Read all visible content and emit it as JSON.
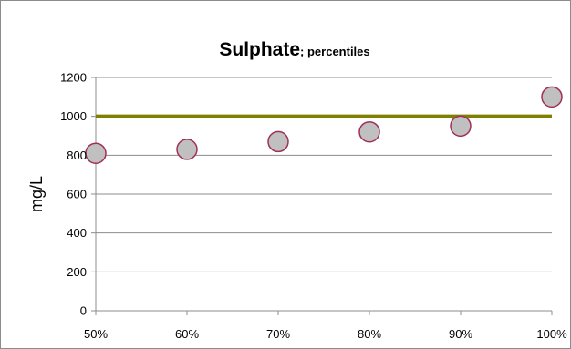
{
  "chart_data": {
    "type": "scatter",
    "title": "Sulphate",
    "subtitle": "; percentiles",
    "xlabel": "",
    "ylabel": "mg/L",
    "x": [
      "50%",
      "60%",
      "70%",
      "80%",
      "90%",
      "100%"
    ],
    "series": [
      {
        "values": [
          810,
          830,
          870,
          920,
          950,
          1100
        ]
      }
    ],
    "reference_line": {
      "value": 1000
    },
    "ylim": [
      0,
      1200
    ],
    "yticks": [
      0,
      200,
      400,
      600,
      800,
      1000,
      1200
    ],
    "grid": true,
    "legend": "none",
    "colors": {
      "marker_fill": "#c0c0c0",
      "marker_stroke": "#a0305a",
      "reference_line": "#808000",
      "gridline": "#8c8c8c",
      "axis": "#8c8c8c"
    }
  }
}
